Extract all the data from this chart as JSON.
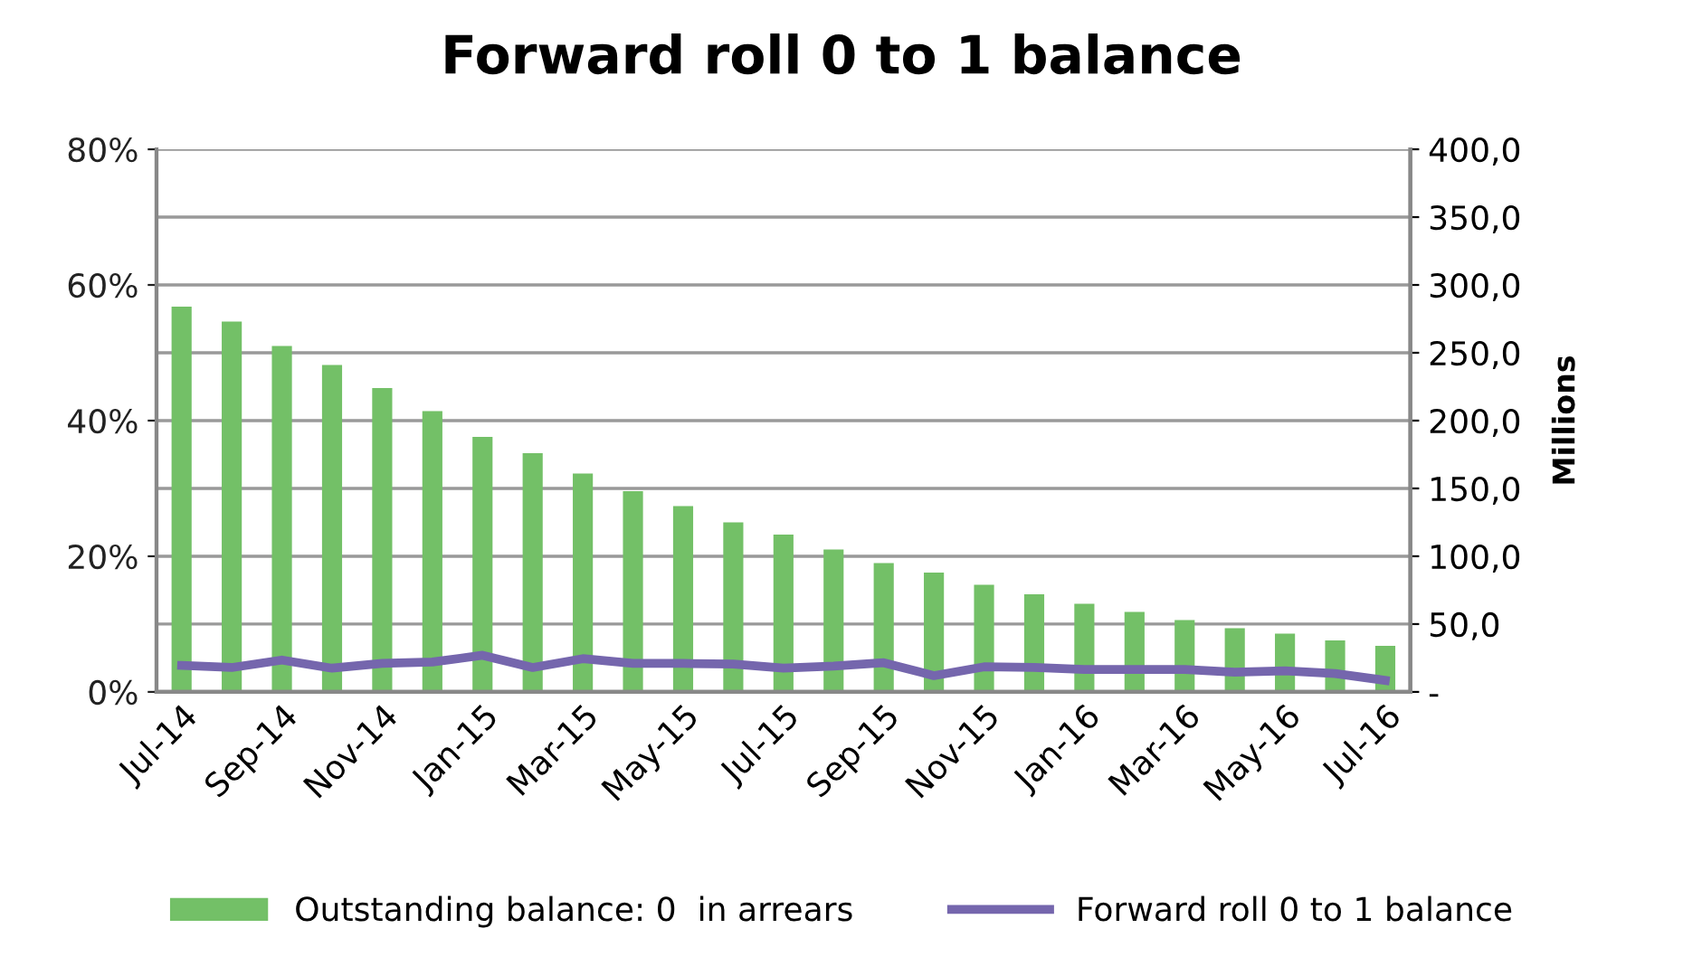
{
  "chart_data": {
    "type": "bar",
    "title": "Forward roll 0 to 1 balance",
    "y2label": "Millions",
    "categories": [
      "Jul-14",
      null,
      "Sep-14",
      null,
      "Nov-14",
      null,
      "Jan-15",
      null,
      "Mar-15",
      null,
      "May-15",
      null,
      "Jul-15",
      null,
      "Sep-15",
      null,
      "Nov-15",
      null,
      "Jan-16",
      null,
      "Mar-16",
      null,
      "May-16",
      null,
      "Jul-16"
    ],
    "series": [
      {
        "name": "Outstanding balance: 0  in arrears",
        "axis": "y2",
        "color": "#73c067",
        "values": [
          284,
          273,
          255,
          241,
          224,
          207,
          188,
          176,
          161,
          148,
          137,
          125,
          116,
          105,
          95,
          88,
          79,
          72,
          65,
          59,
          53,
          47,
          43,
          38,
          34
        ]
      },
      {
        "name": "Forward roll 0 to 1 balance",
        "type": "line",
        "axis": "y",
        "color": "#7566ad",
        "values": [
          3.9,
          3.6,
          4.7,
          3.5,
          4.2,
          4.4,
          5.4,
          3.6,
          4.9,
          4.2,
          4.2,
          4.1,
          3.5,
          3.8,
          4.3,
          2.4,
          3.7,
          3.6,
          3.3,
          3.3,
          3.3,
          2.9,
          3.1,
          2.7,
          1.7
        ]
      }
    ],
    "ylim": [
      0,
      80
    ],
    "yticks": [
      {
        "value": 0,
        "label": "0%"
      },
      {
        "value": 20,
        "label": "20%"
      },
      {
        "value": 40,
        "label": "40%"
      },
      {
        "value": 60,
        "label": "60%"
      },
      {
        "value": 80,
        "label": "80%"
      }
    ],
    "y2lim": [
      0,
      400
    ],
    "y2ticks": [
      {
        "value": 0,
        "label": "-"
      },
      {
        "value": 50,
        "label": "50,0"
      },
      {
        "value": 100,
        "label": "100,0"
      },
      {
        "value": 150,
        "label": "150,0"
      },
      {
        "value": 200,
        "label": "200,0"
      },
      {
        "value": 250,
        "label": "250,0"
      },
      {
        "value": 300,
        "label": "300,0"
      },
      {
        "value": 350,
        "label": "350,0"
      },
      {
        "value": 400,
        "label": "400,0"
      }
    ],
    "grid": "y",
    "legend": "bottom",
    "marker": "none",
    "line_style": "solid"
  }
}
